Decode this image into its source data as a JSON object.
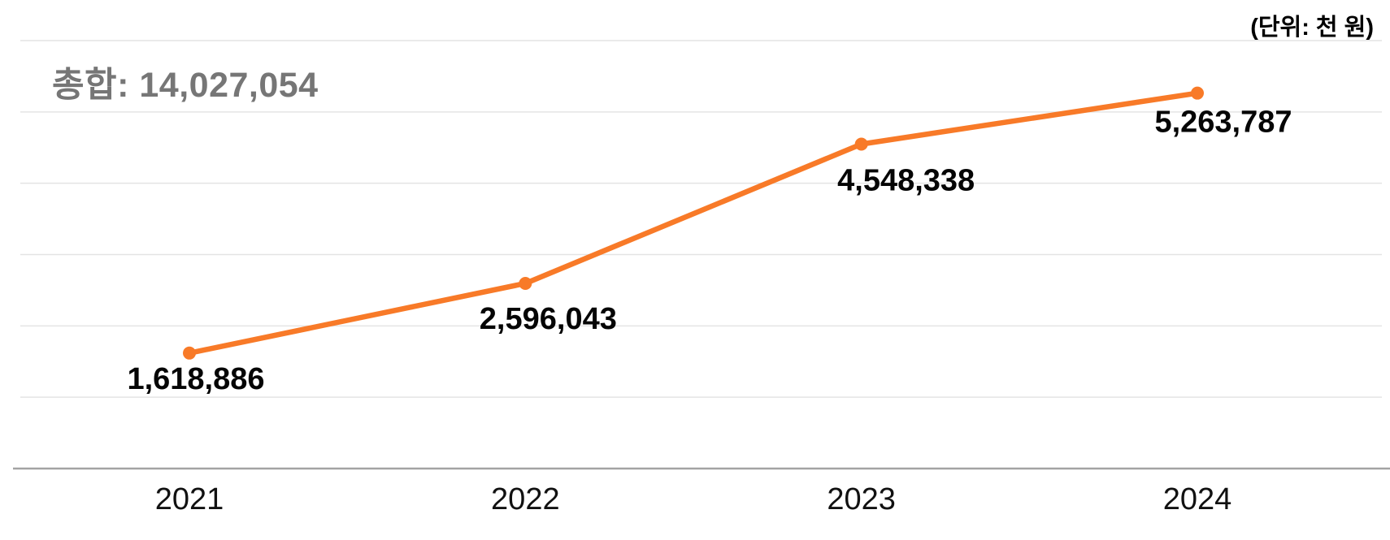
{
  "header": {
    "total_text": "총합: 14,027,054",
    "unit_text": "(단위: 천 원)"
  },
  "chart_data": {
    "type": "line",
    "title": "총합: 14,027,054",
    "unit": "(단위: 천 원)",
    "total_value": 14027054,
    "categories": [
      "2021",
      "2022",
      "2023",
      "2024"
    ],
    "values": [
      1618886,
      2596043,
      4548338,
      5263787
    ],
    "value_labels": [
      "1,618,886",
      "2,596,043",
      "4,548,338",
      "5,263,787"
    ],
    "xlabel": "",
    "ylabel": "",
    "ylim": [
      0,
      6000000
    ],
    "grid_interval": 1000000,
    "grid": true,
    "legend": "none",
    "marker": "circle",
    "colors": {
      "line": "#f87a28",
      "marker": "#f87a28",
      "grid": "#e4e4e4",
      "axis": "#a3a3a3",
      "title": "#767676",
      "value_label": "#050505",
      "tick_label": "#111111",
      "background": "#ffffff"
    }
  }
}
